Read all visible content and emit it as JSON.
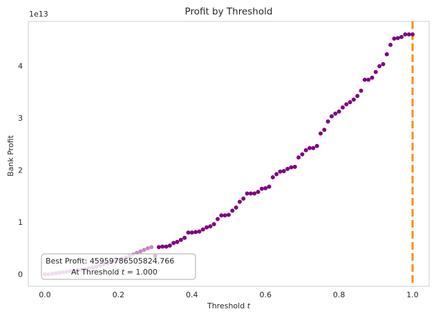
{
  "chart_data": {
    "type": "scatter",
    "title": "Profit by Threshold",
    "xlabel": "Threshold t",
    "xlabel_main": "Threshold ",
    "xlabel_var": "t",
    "ylabel": "Bank Profit",
    "y_offset_label": "1e13",
    "xlim": [
      -0.045,
      1.045
    ],
    "ylim": [
      -0.23,
      4.85
    ],
    "x_ticks": [
      0.0,
      0.2,
      0.4,
      0.6,
      0.8,
      1.0
    ],
    "x_tick_labels": [
      "0.0",
      "0.2",
      "0.4",
      "0.6",
      "0.8",
      "1.0"
    ],
    "y_ticks": [
      0,
      1,
      2,
      3,
      4
    ],
    "y_tick_labels": [
      "0",
      "1",
      "2",
      "3",
      "4"
    ],
    "grid": false,
    "best_threshold_line": {
      "x": 1.0,
      "color": "#ff8c00"
    },
    "point_color": "#800080",
    "faded_point_color": "#c48ac4",
    "annotation": {
      "line1": "Best Profit:  45959786505824.766",
      "line2_prefix": "At Threshold ",
      "line2_var": "t",
      "line2_suffix": " =  1.000"
    },
    "series": [
      {
        "x": [
          0.0,
          0.01,
          0.02,
          0.03,
          0.04,
          0.05,
          0.06,
          0.07,
          0.08,
          0.09,
          0.1,
          0.11,
          0.12,
          0.13,
          0.14,
          0.15,
          0.16,
          0.17,
          0.18,
          0.19,
          0.2,
          0.21,
          0.22,
          0.23,
          0.24,
          0.25,
          0.26,
          0.27,
          0.28,
          0.29,
          0.3,
          0.31,
          0.32,
          0.33,
          0.34,
          0.35,
          0.36,
          0.37,
          0.38,
          0.39,
          0.4,
          0.41,
          0.42,
          0.43,
          0.44,
          0.45,
          0.46,
          0.47,
          0.48,
          0.49,
          0.5,
          0.51,
          0.52,
          0.53,
          0.54,
          0.55,
          0.56,
          0.57,
          0.58,
          0.59,
          0.6,
          0.61,
          0.62,
          0.63,
          0.64,
          0.65,
          0.66,
          0.67,
          0.68,
          0.69,
          0.7,
          0.71,
          0.72,
          0.73,
          0.74,
          0.75,
          0.76,
          0.77,
          0.78,
          0.79,
          0.8,
          0.81,
          0.82,
          0.83,
          0.84,
          0.85,
          0.86,
          0.87,
          0.88,
          0.89,
          0.9,
          0.91,
          0.92,
          0.93,
          0.94,
          0.95,
          0.96,
          0.97,
          0.98,
          0.99,
          1.0
        ],
        "y": [
          0.0,
          0.0,
          0.01,
          0.02,
          0.03,
          0.04,
          0.05,
          0.06,
          0.07,
          0.08,
          0.09,
          0.1,
          0.12,
          0.13,
          0.15,
          0.17,
          0.19,
          0.21,
          0.23,
          0.25,
          0.28,
          0.3,
          0.32,
          0.35,
          0.38,
          0.41,
          0.44,
          0.47,
          0.5,
          0.52,
          0.35,
          0.52,
          0.53,
          0.53,
          0.55,
          0.6,
          0.62,
          0.66,
          0.7,
          0.8,
          0.8,
          0.81,
          0.82,
          0.86,
          0.9,
          0.92,
          0.96,
          1.06,
          1.13,
          1.13,
          1.14,
          1.22,
          1.28,
          1.39,
          1.45,
          1.55,
          1.55,
          1.55,
          1.58,
          1.64,
          1.65,
          1.68,
          1.86,
          1.92,
          1.97,
          1.98,
          2.02,
          2.05,
          2.06,
          2.24,
          2.3,
          2.38,
          2.42,
          2.42,
          2.46,
          2.7,
          2.77,
          2.93,
          3.03,
          3.08,
          3.12,
          3.2,
          3.26,
          3.3,
          3.35,
          3.42,
          3.52,
          3.73,
          3.73,
          3.77,
          3.88,
          3.99,
          4.03,
          4.22,
          4.4,
          4.52,
          4.53,
          4.55,
          4.6,
          4.6,
          4.6
        ]
      }
    ]
  }
}
